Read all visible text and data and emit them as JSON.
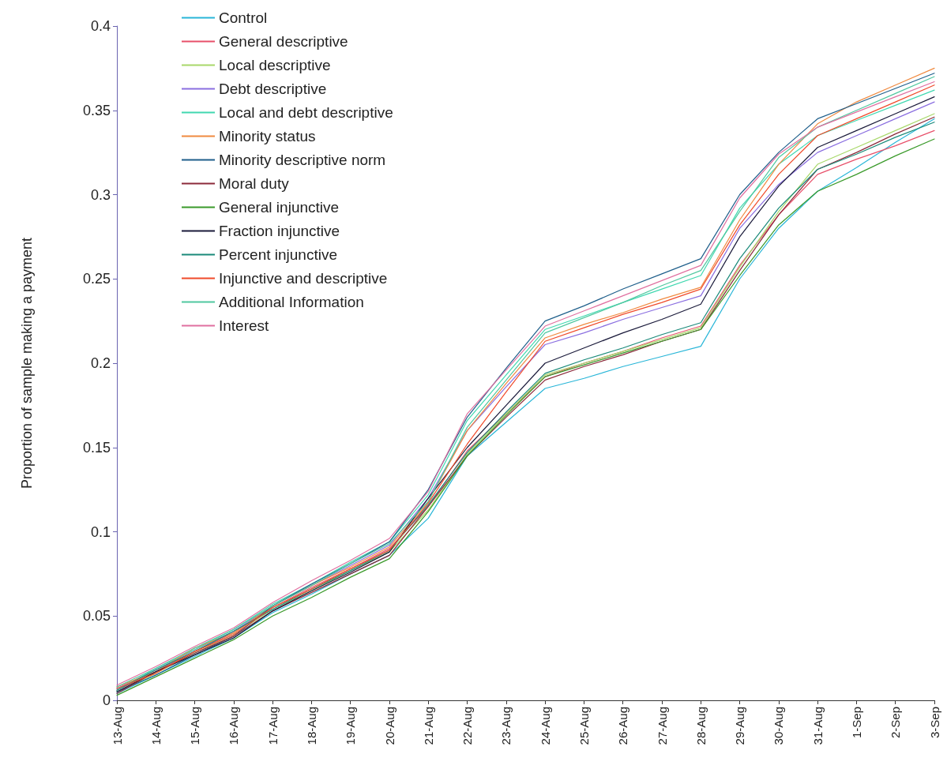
{
  "chart_data": {
    "type": "line",
    "ylabel": "Proportion of sample making a payment",
    "categories": [
      "13-Aug",
      "14-Aug",
      "15-Aug",
      "16-Aug",
      "17-Aug",
      "18-Aug",
      "19-Aug",
      "20-Aug",
      "21-Aug",
      "22-Aug",
      "23-Aug",
      "24-Aug",
      "25-Aug",
      "26-Aug",
      "27-Aug",
      "28-Aug",
      "29-Aug",
      "30-Aug",
      "31-Aug",
      "1-Sep",
      "2-Sep",
      "3-Sep"
    ],
    "ylim": [
      0,
      0.4
    ],
    "yticks": [
      0,
      0.05,
      0.1,
      0.15,
      0.2,
      0.25,
      0.3,
      0.35,
      0.4
    ],
    "grid": false,
    "legend": "top left",
    "marker": "none",
    "line_style": "solid",
    "series": [
      {
        "name": "Control",
        "color": "#29b6d8",
        "values": [
          0.004,
          0.015,
          0.026,
          0.037,
          0.052,
          0.063,
          0.075,
          0.086,
          0.108,
          0.145,
          0.165,
          0.185,
          0.191,
          0.198,
          0.204,
          0.21,
          0.25,
          0.28,
          0.302,
          0.316,
          0.331,
          0.345
        ]
      },
      {
        "name": "General descriptive",
        "color": "#e8506a",
        "values": [
          0.006,
          0.017,
          0.029,
          0.04,
          0.055,
          0.067,
          0.078,
          0.09,
          0.115,
          0.148,
          0.17,
          0.192,
          0.2,
          0.207,
          0.215,
          0.222,
          0.258,
          0.288,
          0.312,
          0.321,
          0.329,
          0.338
        ]
      },
      {
        "name": "Local descriptive",
        "color": "#a8d86a",
        "values": [
          0.005,
          0.016,
          0.028,
          0.039,
          0.054,
          0.065,
          0.077,
          0.088,
          0.113,
          0.146,
          0.17,
          0.193,
          0.2,
          0.207,
          0.214,
          0.221,
          0.257,
          0.29,
          0.318,
          0.328,
          0.338,
          0.348
        ]
      },
      {
        "name": "Debt descriptive",
        "color": "#8a6ee0",
        "values": [
          0.007,
          0.018,
          0.03,
          0.041,
          0.056,
          0.068,
          0.08,
          0.092,
          0.12,
          0.16,
          0.186,
          0.211,
          0.218,
          0.226,
          0.233,
          0.24,
          0.28,
          0.306,
          0.325,
          0.335,
          0.345,
          0.355
        ]
      },
      {
        "name": "Local and debt descriptive",
        "color": "#40d8b0",
        "values": [
          0.006,
          0.019,
          0.03,
          0.042,
          0.057,
          0.069,
          0.082,
          0.094,
          0.122,
          0.166,
          0.193,
          0.22,
          0.228,
          0.236,
          0.244,
          0.252,
          0.292,
          0.318,
          0.335,
          0.344,
          0.353,
          0.362
        ]
      },
      {
        "name": "Minority status",
        "color": "#f08a40",
        "values": [
          0.008,
          0.017,
          0.031,
          0.04,
          0.056,
          0.068,
          0.079,
          0.091,
          0.118,
          0.16,
          0.188,
          0.215,
          0.223,
          0.23,
          0.238,
          0.245,
          0.285,
          0.318,
          0.342,
          0.355,
          0.365,
          0.375
        ]
      },
      {
        "name": "Minority descriptive norm",
        "color": "#1f5f8b",
        "values": [
          0.005,
          0.015,
          0.027,
          0.038,
          0.056,
          0.069,
          0.081,
          0.094,
          0.125,
          0.168,
          0.197,
          0.225,
          0.234,
          0.244,
          0.253,
          0.262,
          0.3,
          0.325,
          0.345,
          0.354,
          0.363,
          0.372
        ]
      },
      {
        "name": "Moral duty",
        "color": "#8b2a3a",
        "values": [
          0.004,
          0.017,
          0.028,
          0.038,
          0.053,
          0.064,
          0.075,
          0.086,
          0.115,
          0.145,
          0.168,
          0.19,
          0.198,
          0.205,
          0.213,
          0.22,
          0.255,
          0.288,
          0.315,
          0.325,
          0.336,
          0.346
        ]
      },
      {
        "name": "General injunctive",
        "color": "#3a9a2a",
        "values": [
          0.003,
          0.014,
          0.025,
          0.036,
          0.05,
          0.061,
          0.073,
          0.084,
          0.112,
          0.145,
          0.169,
          0.192,
          0.199,
          0.206,
          0.213,
          0.22,
          0.252,
          0.282,
          0.302,
          0.312,
          0.323,
          0.333
        ]
      },
      {
        "name": "Fraction injunctive",
        "color": "#1a1a3a",
        "values": [
          0.005,
          0.017,
          0.027,
          0.037,
          0.053,
          0.065,
          0.076,
          0.088,
          0.12,
          0.15,
          0.175,
          0.2,
          0.209,
          0.218,
          0.226,
          0.235,
          0.275,
          0.305,
          0.328,
          0.338,
          0.348,
          0.358
        ]
      },
      {
        "name": "Percent injunctive",
        "color": "#1a8a7a",
        "values": [
          0.006,
          0.018,
          0.029,
          0.041,
          0.054,
          0.066,
          0.077,
          0.089,
          0.116,
          0.147,
          0.171,
          0.194,
          0.202,
          0.209,
          0.217,
          0.224,
          0.262,
          0.292,
          0.315,
          0.324,
          0.334,
          0.343
        ]
      },
      {
        "name": "Injunctive and descriptive",
        "color": "#f04a2a",
        "values": [
          0.007,
          0.016,
          0.029,
          0.039,
          0.055,
          0.066,
          0.078,
          0.089,
          0.117,
          0.152,
          0.183,
          0.213,
          0.221,
          0.229,
          0.236,
          0.244,
          0.282,
          0.312,
          0.335,
          0.345,
          0.355,
          0.365
        ]
      },
      {
        "name": "Additional Information",
        "color": "#50c8a0",
        "values": [
          0.008,
          0.019,
          0.031,
          0.042,
          0.056,
          0.068,
          0.081,
          0.093,
          0.118,
          0.162,
          0.19,
          0.218,
          0.227,
          0.236,
          0.246,
          0.255,
          0.29,
          0.322,
          0.34,
          0.35,
          0.36,
          0.37
        ]
      },
      {
        "name": "Interest",
        "color": "#e070a0",
        "values": [
          0.009,
          0.02,
          0.032,
          0.043,
          0.058,
          0.071,
          0.083,
          0.096,
          0.124,
          0.17,
          0.196,
          0.222,
          0.231,
          0.24,
          0.249,
          0.258,
          0.298,
          0.324,
          0.34,
          0.349,
          0.358,
          0.367
        ]
      }
    ]
  }
}
